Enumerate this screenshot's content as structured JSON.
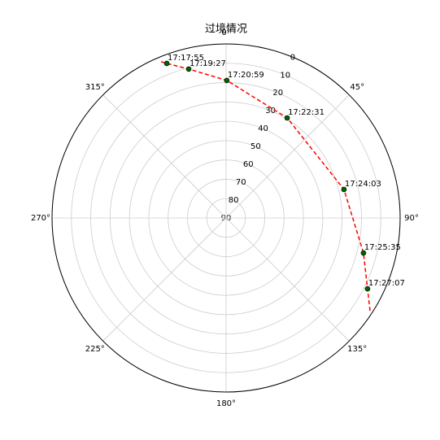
{
  "chart_data": {
    "type": "polar",
    "title": "过境情况",
    "theta_zero": "N",
    "theta_direction": "clockwise",
    "rlim": [
      90,
      0
    ],
    "rticks": [
      0,
      10,
      20,
      30,
      40,
      50,
      60,
      70,
      80,
      90
    ],
    "thetaticks": [
      {
        "value": 0,
        "label": "0°"
      },
      {
        "value": 45,
        "label": "45°"
      },
      {
        "value": 90,
        "label": "90°"
      },
      {
        "value": 135,
        "label": "135°"
      },
      {
        "value": 180,
        "label": "180°"
      },
      {
        "value": 225,
        "label": "225°"
      },
      {
        "value": 270,
        "label": "270°"
      },
      {
        "value": 315,
        "label": "315°"
      }
    ],
    "grid": true,
    "track": {
      "color": "#ff0000",
      "theta": [
        337.4,
        339,
        345.9,
        0.3,
        31.4,
        76.4,
        104.3,
        116.6,
        123
      ],
      "r": [
        2.5,
        4.4,
        10.6,
        18.9,
        29.4,
        27.3,
        16.7,
        8.2,
        1.2
      ]
    },
    "passes": {
      "color": "#006400",
      "labels": [
        "17:17:55",
        "17:19:27",
        "17:20:59",
        "17:22:31",
        "17:24:03",
        "17:25:35",
        "17:27:07"
      ],
      "theta": [
        339,
        345.9,
        0.3,
        31.4,
        76.4,
        104.3,
        116.6
      ],
      "r": [
        4.4,
        10.6,
        18.9,
        29.4,
        27.3,
        16.7,
        8.2
      ]
    }
  }
}
